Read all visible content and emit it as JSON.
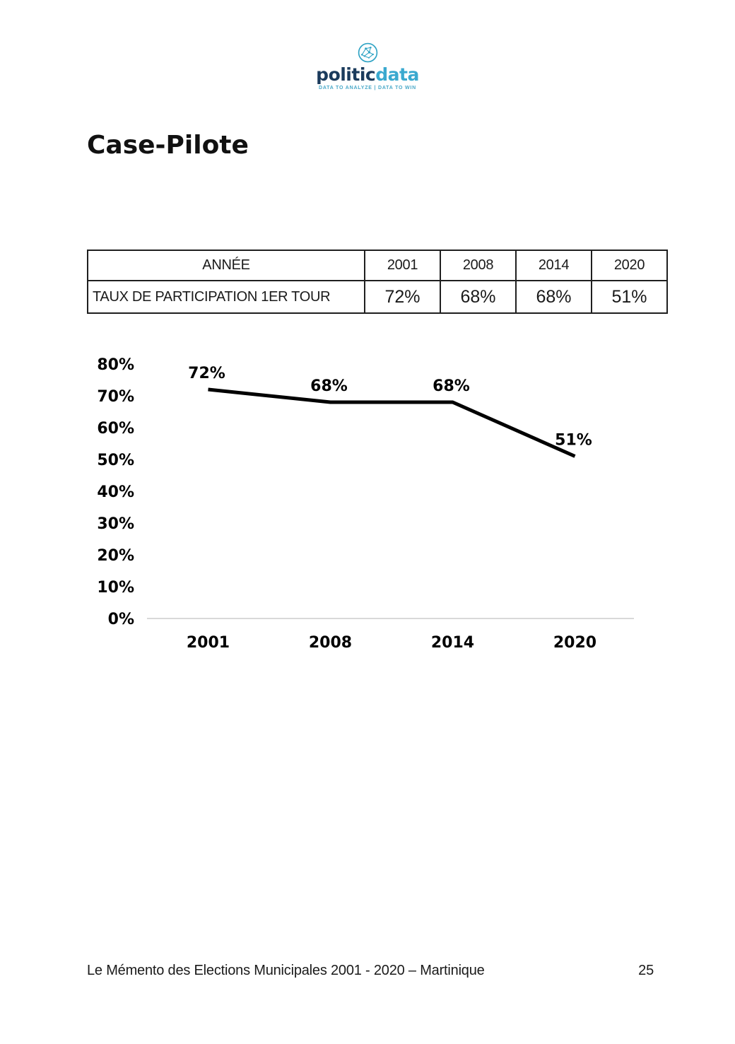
{
  "page": {
    "title": "Case-Pilote"
  },
  "logo": {
    "brand_primary": "politic",
    "brand_secondary": "data",
    "tagline": "DATA TO ANALYZE | DATA TO WIN",
    "brand_primary_color": "#1b3b5c",
    "brand_secondary_color": "#3aa9cf",
    "icon_color": "#2fa3c4"
  },
  "table": {
    "header_label": "ANNÉE",
    "row_label": "TAUX DE PARTICIPATION 1ER TOUR",
    "years": [
      "2001",
      "2008",
      "2014",
      "2020"
    ],
    "values": [
      "72%",
      "68%",
      "68%",
      "51%"
    ]
  },
  "chart_data": {
    "type": "line",
    "categories": [
      "2001",
      "2008",
      "2014",
      "2020"
    ],
    "values": [
      72,
      68,
      68,
      51
    ],
    "data_labels": [
      "72%",
      "68%",
      "68%",
      "51%"
    ],
    "title": "",
    "xlabel": "",
    "ylabel": "",
    "ylim": [
      0,
      80
    ],
    "ytick_step": 10,
    "ytick_suffix": "%",
    "grid": false,
    "legend": "none",
    "line_color": "#000000",
    "baseline_color": "#d9d9d9",
    "label_color": "#000000"
  },
  "footer": {
    "text": "Le Mémento des Elections Municipales 2001 - 2020 – Martinique",
    "page_number": "25"
  }
}
